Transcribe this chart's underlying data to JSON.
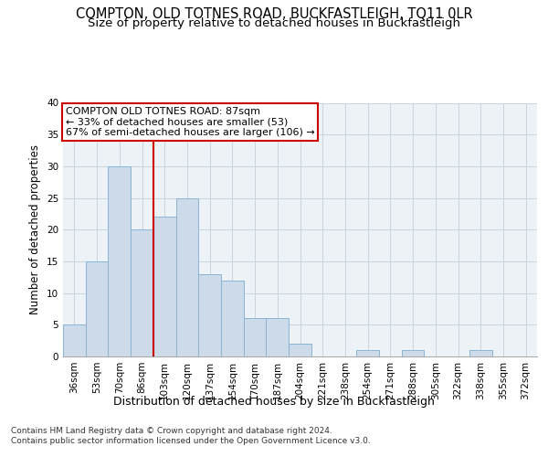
{
  "title": "COMPTON, OLD TOTNES ROAD, BUCKFASTLEIGH, TQ11 0LR",
  "subtitle": "Size of property relative to detached houses in Buckfastleigh",
  "xlabel": "Distribution of detached houses by size in Buckfastleigh",
  "ylabel": "Number of detached properties",
  "categories": [
    "36sqm",
    "53sqm",
    "70sqm",
    "86sqm",
    "103sqm",
    "120sqm",
    "137sqm",
    "154sqm",
    "170sqm",
    "187sqm",
    "204sqm",
    "221sqm",
    "238sqm",
    "254sqm",
    "271sqm",
    "288sqm",
    "305sqm",
    "322sqm",
    "338sqm",
    "355sqm",
    "372sqm"
  ],
  "values": [
    5,
    15,
    30,
    20,
    22,
    25,
    13,
    12,
    6,
    6,
    2,
    0,
    0,
    1,
    0,
    1,
    0,
    0,
    1,
    0,
    0
  ],
  "bar_color": "#ccdaea",
  "bar_edge_color": "#8ab4d4",
  "grid_color": "#c8d4de",
  "background_color": "#edf2f7",
  "vline_color": "#cc0000",
  "annotation_text": "COMPTON OLD TOTNES ROAD: 87sqm\n← 33% of detached houses are smaller (53)\n67% of semi-detached houses are larger (106) →",
  "annotation_box_color": "#ffffff",
  "annotation_box_edge": "#cc0000",
  "ylim": [
    0,
    40
  ],
  "yticks": [
    0,
    5,
    10,
    15,
    20,
    25,
    30,
    35,
    40
  ],
  "footer": "Contains HM Land Registry data © Crown copyright and database right 2024.\nContains public sector information licensed under the Open Government Licence v3.0.",
  "title_fontsize": 10.5,
  "subtitle_fontsize": 9.5,
  "xlabel_fontsize": 9,
  "ylabel_fontsize": 8.5,
  "tick_fontsize": 7.5,
  "footer_fontsize": 6.5,
  "annotation_fontsize": 8
}
